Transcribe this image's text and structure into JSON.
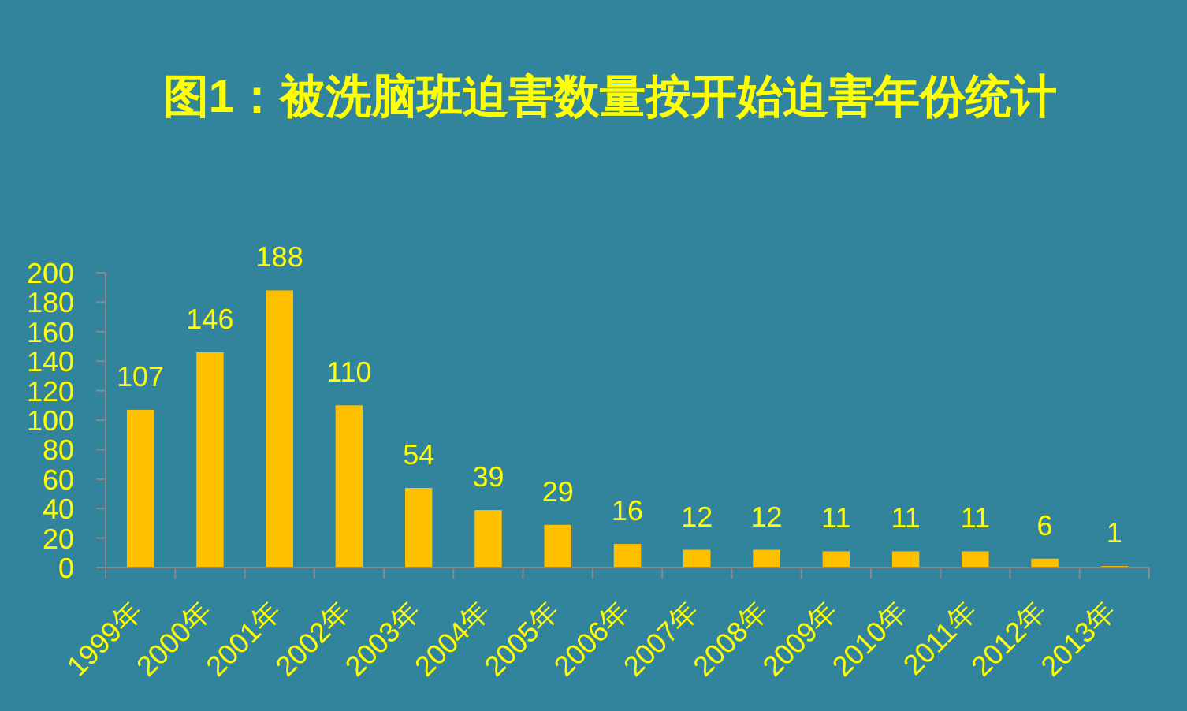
{
  "chart_data": {
    "type": "bar",
    "title": "图1：被洗脑班迫害数量按开始迫害年份统计",
    "categories": [
      "1999年",
      "2000年",
      "2001年",
      "2002年",
      "2003年",
      "2004年",
      "2005年",
      "2006年",
      "2007年",
      "2008年",
      "2009年",
      "2010年",
      "2011年",
      "2012年",
      "2013年"
    ],
    "values": [
      107,
      146,
      188,
      110,
      54,
      39,
      29,
      16,
      12,
      12,
      11,
      11,
      11,
      6,
      1
    ],
    "color": "#ffc000",
    "ylim": [
      0,
      200
    ],
    "yticks": [
      0,
      20,
      40,
      60,
      80,
      100,
      120,
      140,
      160,
      180,
      200
    ],
    "data_labels": true
  }
}
